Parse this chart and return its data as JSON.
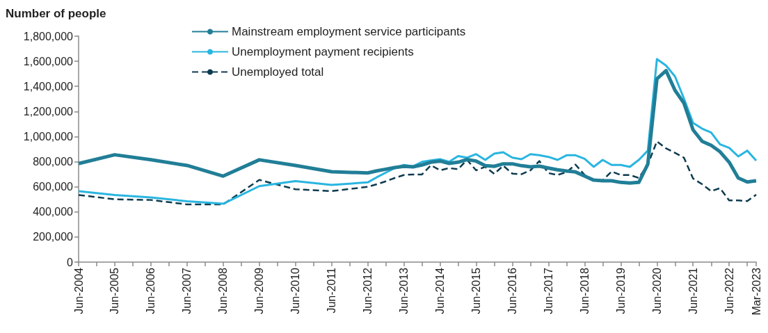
{
  "chart_data": {
    "type": "line",
    "ylabel": "Number of people",
    "x": [
      "2004-06",
      "2005-06",
      "2006-06",
      "2007-06",
      "2008-06",
      "2009-06",
      "2010-06",
      "2011-06",
      "2012-06",
      "2012-09",
      "2012-12",
      "2013-03",
      "2013-06",
      "2013-09",
      "2013-12",
      "2014-03",
      "2014-06",
      "2014-09",
      "2014-12",
      "2015-03",
      "2015-06",
      "2015-09",
      "2015-12",
      "2016-03",
      "2016-06",
      "2016-09",
      "2016-12",
      "2017-03",
      "2017-06",
      "2017-09",
      "2017-12",
      "2018-03",
      "2018-06",
      "2018-09",
      "2018-12",
      "2019-03",
      "2019-06",
      "2019-09",
      "2019-12",
      "2020-03",
      "2020-06",
      "2020-09",
      "2020-12",
      "2021-03",
      "2021-06",
      "2021-09",
      "2021-12",
      "2022-03",
      "2022-06",
      "2022-09",
      "2022-12",
      "2023-03"
    ],
    "series": [
      {
        "name": "Mainstream employment service participants",
        "color": "#217e97",
        "line_style": "solid",
        "values": [
          785000,
          855000,
          815000,
          770000,
          685000,
          815000,
          770000,
          720000,
          710000,
          727000,
          740000,
          753000,
          763000,
          759000,
          774000,
          796000,
          805000,
          786000,
          796000,
          817000,
          805000,
          768000,
          763000,
          783000,
          783000,
          768000,
          759000,
          764000,
          749000,
          735000,
          725000,
          718000,
          685000,
          653000,
          648000,
          648000,
          635000,
          630000,
          635000,
          780000,
          1460000,
          1525000,
          1368000,
          1266000,
          1054000,
          962000,
          930000,
          879000,
          796000,
          670000,
          638000,
          648000
        ]
      },
      {
        "name": "Unemployment payment recipients",
        "color": "#29b5e0",
        "line_style": "solid",
        "values": [
          565000,
          535000,
          515000,
          485000,
          465000,
          605000,
          645000,
          615000,
          635000,
          676000,
          713000,
          749000,
          774000,
          763000,
          799000,
          810000,
          820000,
          799000,
          845000,
          832000,
          860000,
          814000,
          864000,
          875000,
          832000,
          820000,
          860000,
          851000,
          838000,
          814000,
          851000,
          851000,
          823000,
          759000,
          814000,
          774000,
          774000,
          759000,
          814000,
          888000,
          1617000,
          1566000,
          1479000,
          1303000,
          1109000,
          1063000,
          1032000,
          938000,
          910000,
          842000,
          888000,
          809000
        ]
      },
      {
        "name": "Unemployed total",
        "color": "#0d3b4f",
        "line_style": "dashed",
        "values": [
          535000,
          500000,
          495000,
          460000,
          460000,
          655000,
          580000,
          565000,
          600000,
          620000,
          644000,
          670000,
          694000,
          698000,
          698000,
          772000,
          731000,
          749000,
          740000,
          814000,
          731000,
          759000,
          703000,
          768000,
          705000,
          700000,
          731000,
          805000,
          709000,
          694000,
          716000,
          777000,
          694000,
          657000,
          652000,
          722000,
          694000,
          694000,
          670000,
          777000,
          962000,
          906000,
          870000,
          832000,
          666000,
          620000,
          565000,
          589000,
          491000,
          491000,
          486000,
          537000
        ]
      }
    ],
    "xlim": [
      "2004-06",
      "2023-03"
    ],
    "xticks": [
      {
        "value": "2004-06",
        "label": "Jun-2004"
      },
      {
        "value": "2004-12",
        "label": null
      },
      {
        "value": "2005-06",
        "label": "Jun-2005"
      },
      {
        "value": "2005-12",
        "label": null
      },
      {
        "value": "2006-06",
        "label": "Jun-2006"
      },
      {
        "value": "2006-12",
        "label": null
      },
      {
        "value": "2007-06",
        "label": "Jun-2007"
      },
      {
        "value": "2007-12",
        "label": null
      },
      {
        "value": "2008-06",
        "label": "Jun-2008"
      },
      {
        "value": "2008-12",
        "label": null
      },
      {
        "value": "2009-06",
        "label": "Jun-2009"
      },
      {
        "value": "2009-12",
        "label": null
      },
      {
        "value": "2010-06",
        "label": "Jun-2010"
      },
      {
        "value": "2010-12",
        "label": null
      },
      {
        "value": "2011-06",
        "label": "Jun-2011"
      },
      {
        "value": "2011-12",
        "label": null
      },
      {
        "value": "2012-06",
        "label": "Jun-2012"
      },
      {
        "value": "2012-12",
        "label": null
      },
      {
        "value": "2013-06",
        "label": "Jun-2013"
      },
      {
        "value": "2013-12",
        "label": null
      },
      {
        "value": "2014-06",
        "label": "Jun-2014"
      },
      {
        "value": "2014-12",
        "label": null
      },
      {
        "value": "2015-06",
        "label": "Jun-2015"
      },
      {
        "value": "2015-12",
        "label": null
      },
      {
        "value": "2016-06",
        "label": "Jun-2016"
      },
      {
        "value": "2016-12",
        "label": null
      },
      {
        "value": "2017-06",
        "label": "Jun-2017"
      },
      {
        "value": "2017-12",
        "label": null
      },
      {
        "value": "2018-06",
        "label": "Jun-2018"
      },
      {
        "value": "2018-12",
        "label": null
      },
      {
        "value": "2019-06",
        "label": "Jun-2019"
      },
      {
        "value": "2019-12",
        "label": null
      },
      {
        "value": "2020-06",
        "label": "Jun-2020"
      },
      {
        "value": "2020-12",
        "label": null
      },
      {
        "value": "2021-06",
        "label": "Jun-2021"
      },
      {
        "value": "2021-12",
        "label": null
      },
      {
        "value": "2022-06",
        "label": "Jun-2022"
      },
      {
        "value": "2022-12",
        "label": null
      },
      {
        "value": "2023-03",
        "label": "Mar-2023"
      }
    ],
    "ylim": [
      0,
      1800000
    ],
    "yticks": [
      0,
      {
        "value": 200000,
        "label": "200,000"
      },
      {
        "value": 400000,
        "label": "400,000"
      },
      {
        "value": 600000,
        "label": "600,000"
      },
      {
        "value": 800000,
        "label": "800,000"
      },
      {
        "value": 1000000,
        "label": "1,000,000"
      },
      {
        "value": 1200000,
        "label": "1,200,000"
      },
      {
        "value": 1400000,
        "label": "1,400,000"
      },
      {
        "value": 1600000,
        "label": "1,600,000"
      },
      {
        "value": 1800000,
        "label": "1,800,000"
      }
    ],
    "grid": false,
    "legend": "top left",
    "marker": "none"
  }
}
